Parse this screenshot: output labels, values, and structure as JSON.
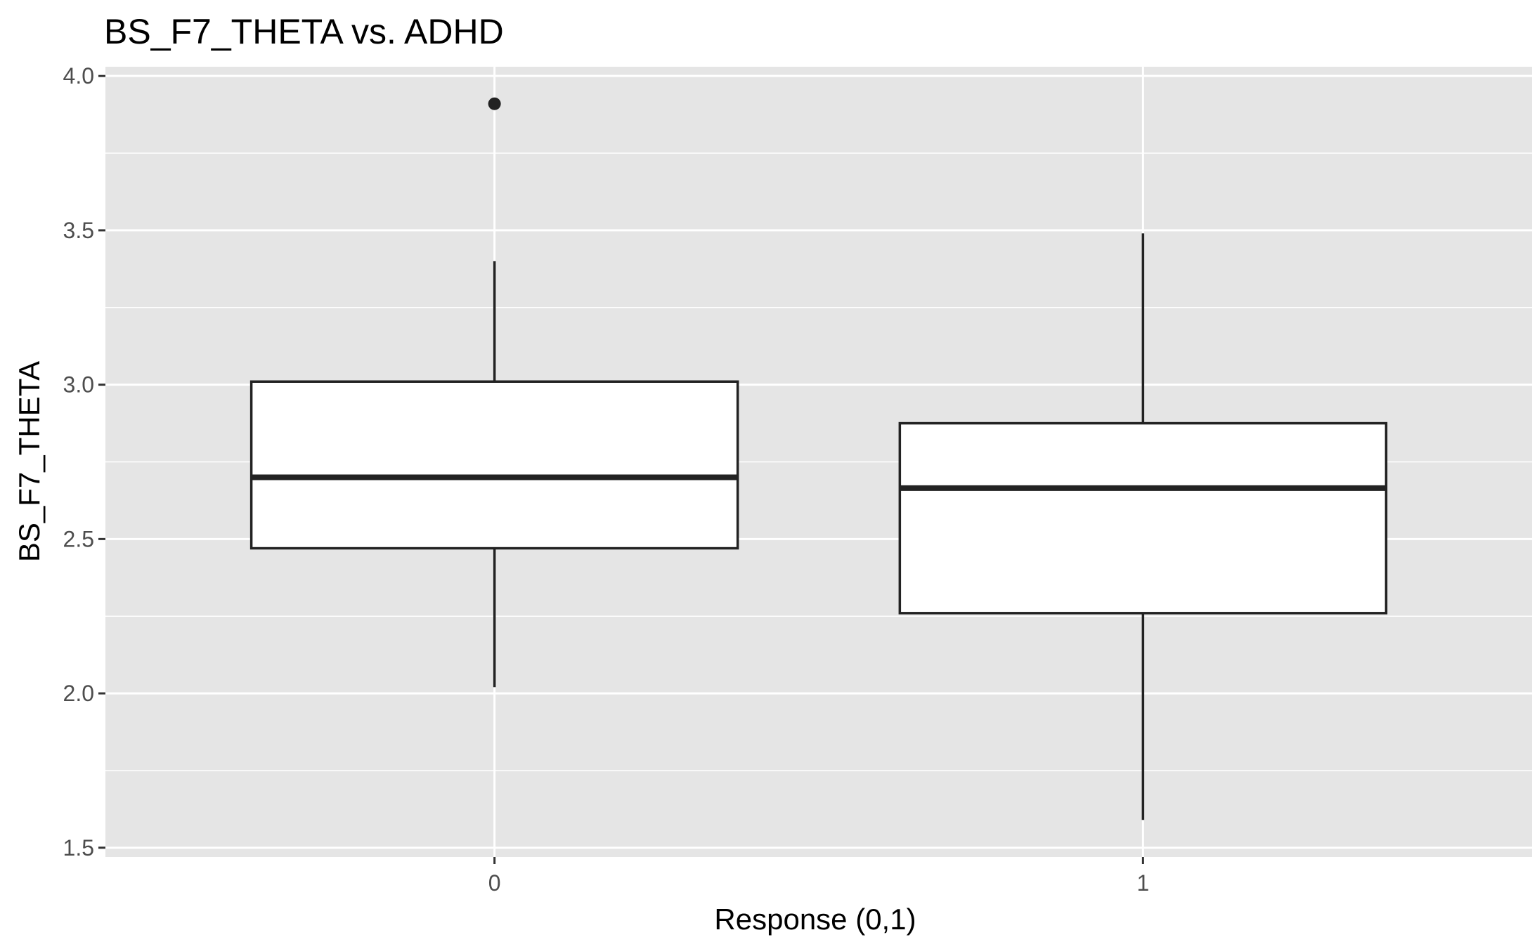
{
  "chart_data": {
    "type": "boxplot",
    "title": "BS_F7_THETA vs. ADHD",
    "xlabel": "Response (0,1)",
    "ylabel": "BS_F7_THETA",
    "categories": [
      "0",
      "1"
    ],
    "ylim": [
      1.47,
      4.03
    ],
    "yticks": [
      1.5,
      2.0,
      2.5,
      3.0,
      3.5,
      4.0
    ],
    "ytick_labels": [
      "1.5",
      "2.0",
      "2.5",
      "3.0",
      "3.5",
      "4.0"
    ],
    "boxes": [
      {
        "category": "0",
        "whisker_low": 2.02,
        "q1": 2.47,
        "median": 2.7,
        "q3": 3.01,
        "whisker_high": 3.4,
        "outliers": [
          3.91
        ]
      },
      {
        "category": "1",
        "whisker_low": 1.59,
        "q1": 2.26,
        "median": 2.665,
        "q3": 2.875,
        "whisker_high": 3.49,
        "outliers": []
      }
    ],
    "grid": true,
    "legend": "none",
    "colors": {
      "panel": "#e5e5e5",
      "grid": "#ffffff",
      "box_fill": "#ffffff",
      "box_line": "#222222"
    }
  }
}
